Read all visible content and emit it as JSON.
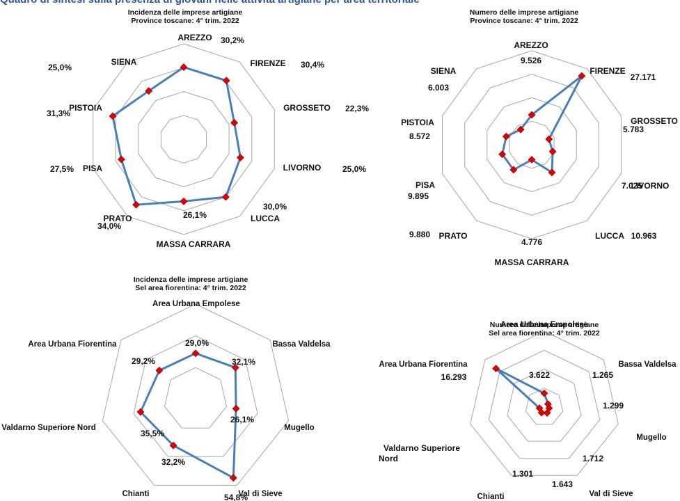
{
  "header_text": "Quadro di sintesi sulla presenza di giovani nelle attività artigiane per area territoriale",
  "colors": {
    "series": "#4a7ebb",
    "marker": "#e00000",
    "grid": "#a6a6a6",
    "title": "#2f5597"
  },
  "chart_data": [
    {
      "type": "radar",
      "title": [
        "Incidenza delle imprese artigiane",
        "Province toscane: 4° trim. 2022"
      ],
      "categories": [
        "AREZZO",
        "FIRENZE",
        "GROSSETO",
        "LIVORNO",
        "LUCCA",
        "MASSA CARRARA",
        "PRATO",
        "PISA",
        "PISTOIA",
        "SIENA"
      ],
      "values": [
        30.2,
        30.4,
        22.3,
        25.0,
        30.0,
        26.1,
        34.0,
        27.5,
        31.3,
        25.0
      ],
      "value_labels": [
        "30,2%",
        "30,4%",
        "22,3%",
        "25,0%",
        "30,0%",
        "26,1%",
        "34,0%",
        "27,5%",
        "31,3%",
        "25,0%"
      ],
      "rlim": [
        0,
        40
      ],
      "grid": true,
      "legend": "none"
    },
    {
      "type": "radar",
      "title": [
        "Numero delle imprese artigiane",
        "Province toscane: 4° trim. 2022"
      ],
      "categories": [
        "AREZZO",
        "FIRENZE",
        "GROSSETO",
        "LIVORNO",
        "LUCCA",
        "MASSA CARRARA",
        "PRATO",
        "PISA",
        "PISTOIA",
        "SIENA"
      ],
      "values": [
        9526,
        27171,
        5783,
        7025,
        10963,
        4776,
        9880,
        9895,
        8572,
        6003
      ],
      "value_labels": [
        "9.526",
        "27.171",
        "5.783",
        "7.025",
        "10.963",
        "4.776",
        "9.880",
        "9.895",
        "8.572",
        "6.003"
      ],
      "rlim": [
        0,
        30000
      ],
      "grid": true,
      "legend": "none"
    },
    {
      "type": "radar",
      "title": [
        "Incidenza delle imprese artigiane",
        "Sel area fiorentina: 4° trim. 2022"
      ],
      "categories": [
        "Area Urbana Empolese",
        "Bassa Valdelsa",
        "Mugello",
        "Val di Sieve",
        "Chianti",
        "Valdarno Superiore Nord",
        "Area Urbana Fiorentina"
      ],
      "values": [
        29.0,
        32.1,
        26.1,
        54.8,
        32.2,
        35.5,
        29.2
      ],
      "value_labels": [
        "29,0%",
        "32,1%",
        "26,1%",
        "54,8%",
        "32,2%",
        "35,5%",
        "29,2%"
      ],
      "rlim": [
        0,
        60
      ],
      "grid": true,
      "legend": "none"
    },
    {
      "type": "radar",
      "title": [
        "Numero delle imprese artigiane",
        "Sel area fiorentina: 4° trim. 2022"
      ],
      "categories": [
        "Area Urbana Empolese",
        "Bassa Valdelsa",
        "Mugello",
        "Val di Sieve",
        "Chianti",
        "Valdarno Superiore Nord",
        "Area Urbana Fiorentina"
      ],
      "values": [
        3622,
        1265,
        1299,
        1712,
        1643,
        1301,
        16293
      ],
      "value_labels": [
        "3.622",
        "1.265",
        "1.299",
        "1.712",
        "1.643",
        "1.301",
        "16.293"
      ],
      "rlim": [
        0,
        20000
      ],
      "grid": true,
      "legend": "none"
    }
  ]
}
